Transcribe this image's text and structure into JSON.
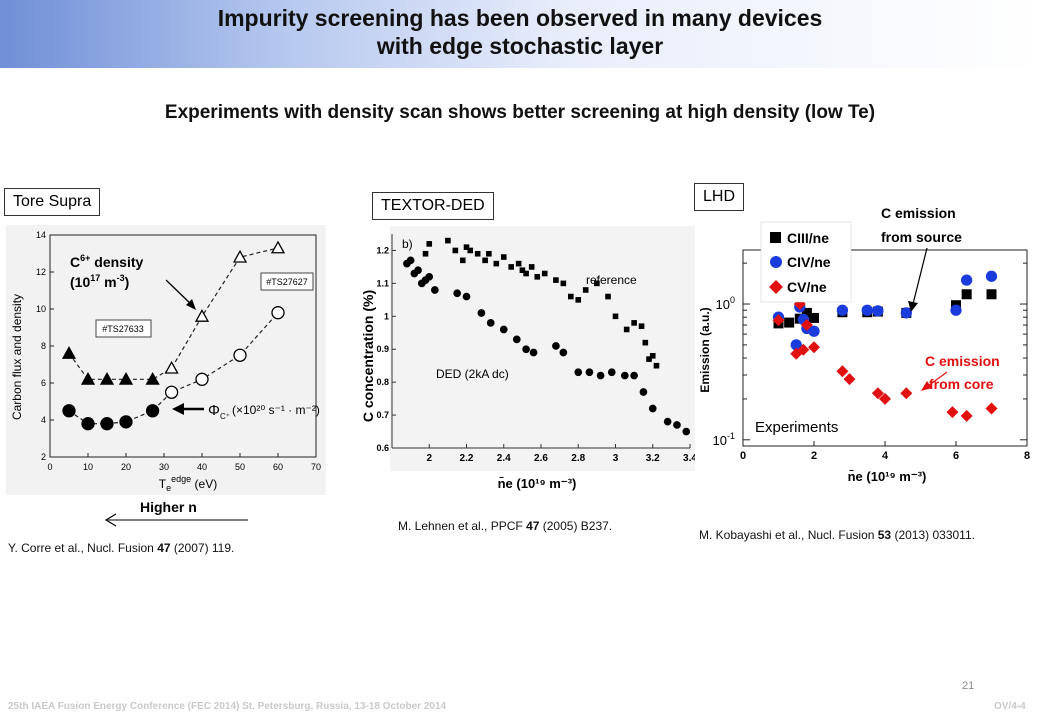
{
  "header": {
    "title_line1": "Impurity screening has been observed in many devices",
    "title_line2": "with edge stochastic layer"
  },
  "subtitle": "Experiments with density scan shows better screening at high density (low Te)",
  "colors": {
    "banner_start": "#6f8fd6",
    "red_series": "#e01010",
    "blue_series": "#1a3cdd"
  },
  "panels": {
    "tore_supra": {
      "label": "Tore Supra",
      "annotation": "C6+ density (10^17 m-3)",
      "annotation_parts": {
        "a1": "C",
        "a1_sup": "6+",
        "a2": " density",
        "b1": "(10",
        "b1_sup": "17",
        "b2": " m",
        "b2_sup": "-3",
        "b3": ")"
      },
      "flux_label": "Φ",
      "flux_sub": "C⁺",
      "flux_units": "(×10²⁰ s⁻¹ · m⁻²)",
      "box1": "#TS27627",
      "box2": "#TS27633",
      "arrow_label": "Higher n",
      "reference": {
        "pre": "Y. Corre et al., Nucl. Fusion ",
        "vol": "47",
        "post": " (2007) 119."
      }
    },
    "textor": {
      "label": "TEXTOR-DED",
      "panel_tag": "b)",
      "series_ref_label": "reference",
      "series_ded_label": "DED (2kA dc)",
      "xlabel": "n̄e (10¹⁹ m⁻³)",
      "ylabel": "C concentration (%)",
      "reference": {
        "pre": "M. Lehnen et al., PPCF ",
        "vol": "47",
        "post": " (2005) B237."
      }
    },
    "lhd": {
      "label": "LHD",
      "legend": {
        "ciii": "CIII/ne",
        "civ": "CIV/ne",
        "cv": "CV/ne"
      },
      "annotation_source": [
        "C emission",
        "from source"
      ],
      "annotation_core": [
        "C emission",
        "from core"
      ],
      "experiments_label": "Experiments",
      "xlabel": "n̄e (10¹⁹ m⁻³)",
      "ylabel": "Emission (a.u.)",
      "reference": {
        "pre": "M. Kobayashi et al., Nucl. Fusion ",
        "vol": "53",
        "post": " (2013) 033011."
      }
    }
  },
  "chart_data": [
    {
      "type": "line",
      "title": "",
      "xlabel": "T_e^edge (eV)",
      "ylabel": "Carbon flux and density",
      "xlim": [
        0,
        70
      ],
      "ylim": [
        2,
        14
      ],
      "xticks": [
        0,
        10,
        20,
        30,
        40,
        50,
        60,
        70
      ],
      "yticks": [
        2,
        4,
        6,
        8,
        10,
        12,
        14
      ],
      "series": [
        {
          "marker": "triangle-filled",
          "x": [
            5,
            10,
            15,
            20,
            27
          ],
          "y": [
            7.6,
            6.2,
            6.2,
            6.2,
            6.2
          ]
        },
        {
          "marker": "triangle-open",
          "x": [
            32,
            40,
            50,
            60
          ],
          "y": [
            6.8,
            9.6,
            12.8,
            13.3
          ]
        },
        {
          "marker": "circle-filled",
          "x": [
            5,
            10,
            15,
            20,
            27
          ],
          "y": [
            4.5,
            3.8,
            3.8,
            3.9,
            4.5
          ]
        },
        {
          "marker": "circle-open",
          "x": [
            32,
            40,
            50,
            60
          ],
          "y": [
            5.5,
            6.2,
            7.5,
            9.8
          ]
        }
      ]
    },
    {
      "type": "scatter",
      "title": "",
      "xlabel": "n̄e (10¹⁹ m⁻³)",
      "ylabel": "C concentration (%)",
      "xlim": [
        1.8,
        3.4
      ],
      "ylim": [
        0.6,
        1.25
      ],
      "xticks": [
        2,
        2.2,
        2.4,
        2.6,
        2.8,
        3,
        3.2,
        3.4
      ],
      "yticks": [
        0.6,
        0.7,
        0.8,
        0.9,
        1,
        1.1,
        1.2
      ],
      "series": [
        {
          "name": "reference",
          "marker": "square",
          "x": [
            1.98,
            2.0,
            2.1,
            2.14,
            2.18,
            2.2,
            2.22,
            2.26,
            2.3,
            2.32,
            2.36,
            2.4,
            2.44,
            2.48,
            2.5,
            2.52,
            2.55,
            2.58,
            2.62,
            2.68,
            2.72,
            2.76,
            2.8,
            2.84,
            2.9,
            2.96,
            3.0,
            3.06,
            3.1,
            3.14,
            3.16,
            3.18,
            3.2,
            3.22
          ],
          "y": [
            1.19,
            1.22,
            1.23,
            1.2,
            1.17,
            1.21,
            1.2,
            1.19,
            1.17,
            1.19,
            1.16,
            1.18,
            1.15,
            1.16,
            1.14,
            1.13,
            1.15,
            1.12,
            1.13,
            1.11,
            1.1,
            1.06,
            1.05,
            1.08,
            1.1,
            1.06,
            1.0,
            0.96,
            0.98,
            0.97,
            0.92,
            0.87,
            0.88,
            0.85
          ]
        },
        {
          "name": "DED (2kA dc)",
          "marker": "circle",
          "x": [
            1.88,
            1.9,
            1.92,
            1.94,
            1.96,
            1.98,
            2.0,
            2.03,
            2.15,
            2.2,
            2.28,
            2.33,
            2.4,
            2.47,
            2.52,
            2.56,
            2.68,
            2.72,
            2.8,
            2.86,
            2.92,
            2.98,
            3.05,
            3.1,
            3.15,
            3.2,
            3.28,
            3.33,
            3.38
          ],
          "y": [
            1.16,
            1.17,
            1.13,
            1.14,
            1.1,
            1.11,
            1.12,
            1.08,
            1.07,
            1.06,
            1.01,
            0.98,
            0.96,
            0.93,
            0.9,
            0.89,
            0.91,
            0.89,
            0.83,
            0.83,
            0.82,
            0.83,
            0.82,
            0.82,
            0.77,
            0.72,
            0.68,
            0.67,
            0.65
          ]
        }
      ]
    },
    {
      "type": "scatter",
      "title": "",
      "xlabel": "n̄e (10¹⁹ m⁻³)",
      "ylabel": "Emission (a.u.)",
      "ylog": true,
      "xlim": [
        0,
        8
      ],
      "ylim": [
        0.09,
        2.5
      ],
      "xticks": [
        0,
        2,
        4,
        6,
        8
      ],
      "yticks_labels": [
        "10^0",
        "10^-1"
      ],
      "series": [
        {
          "name": "CIII/ne",
          "marker": "square",
          "color": "#000000",
          "x": [
            1.0,
            1.3,
            1.6,
            1.8,
            2.0,
            2.8,
            3.5,
            3.8,
            4.6,
            6.0,
            6.3,
            7.0
          ],
          "y": [
            0.72,
            0.73,
            0.78,
            0.86,
            0.79,
            0.87,
            0.87,
            0.88,
            0.86,
            0.98,
            1.18,
            1.18
          ]
        },
        {
          "name": "CIV/ne",
          "marker": "circle",
          "color": "#1a3cdd",
          "x": [
            1.0,
            1.5,
            1.6,
            1.7,
            1.8,
            2.0,
            2.8,
            3.5,
            3.8,
            4.6,
            6.0,
            6.3,
            7.0
          ],
          "y": [
            0.8,
            0.5,
            0.95,
            0.77,
            0.66,
            0.63,
            0.9,
            0.9,
            0.89,
            0.86,
            0.9,
            1.5,
            1.6
          ]
        },
        {
          "name": "CV/ne",
          "marker": "diamond",
          "color": "#e01010",
          "x": [
            1.0,
            1.5,
            1.6,
            1.7,
            1.8,
            2.0,
            2.8,
            3.0,
            3.8,
            4.0,
            4.6,
            5.9,
            6.3,
            7.0
          ],
          "y": [
            0.76,
            0.43,
            1.0,
            0.46,
            0.7,
            0.48,
            0.32,
            0.28,
            0.22,
            0.2,
            0.22,
            0.16,
            0.15,
            0.17
          ]
        }
      ]
    }
  ],
  "page_number": "21",
  "footer": {
    "left": "25th IAEA Fusion Energy Conference (FEC 2014) St. Petersburg, Russia, 13-18 October 2014",
    "right": "OV/4-4"
  }
}
